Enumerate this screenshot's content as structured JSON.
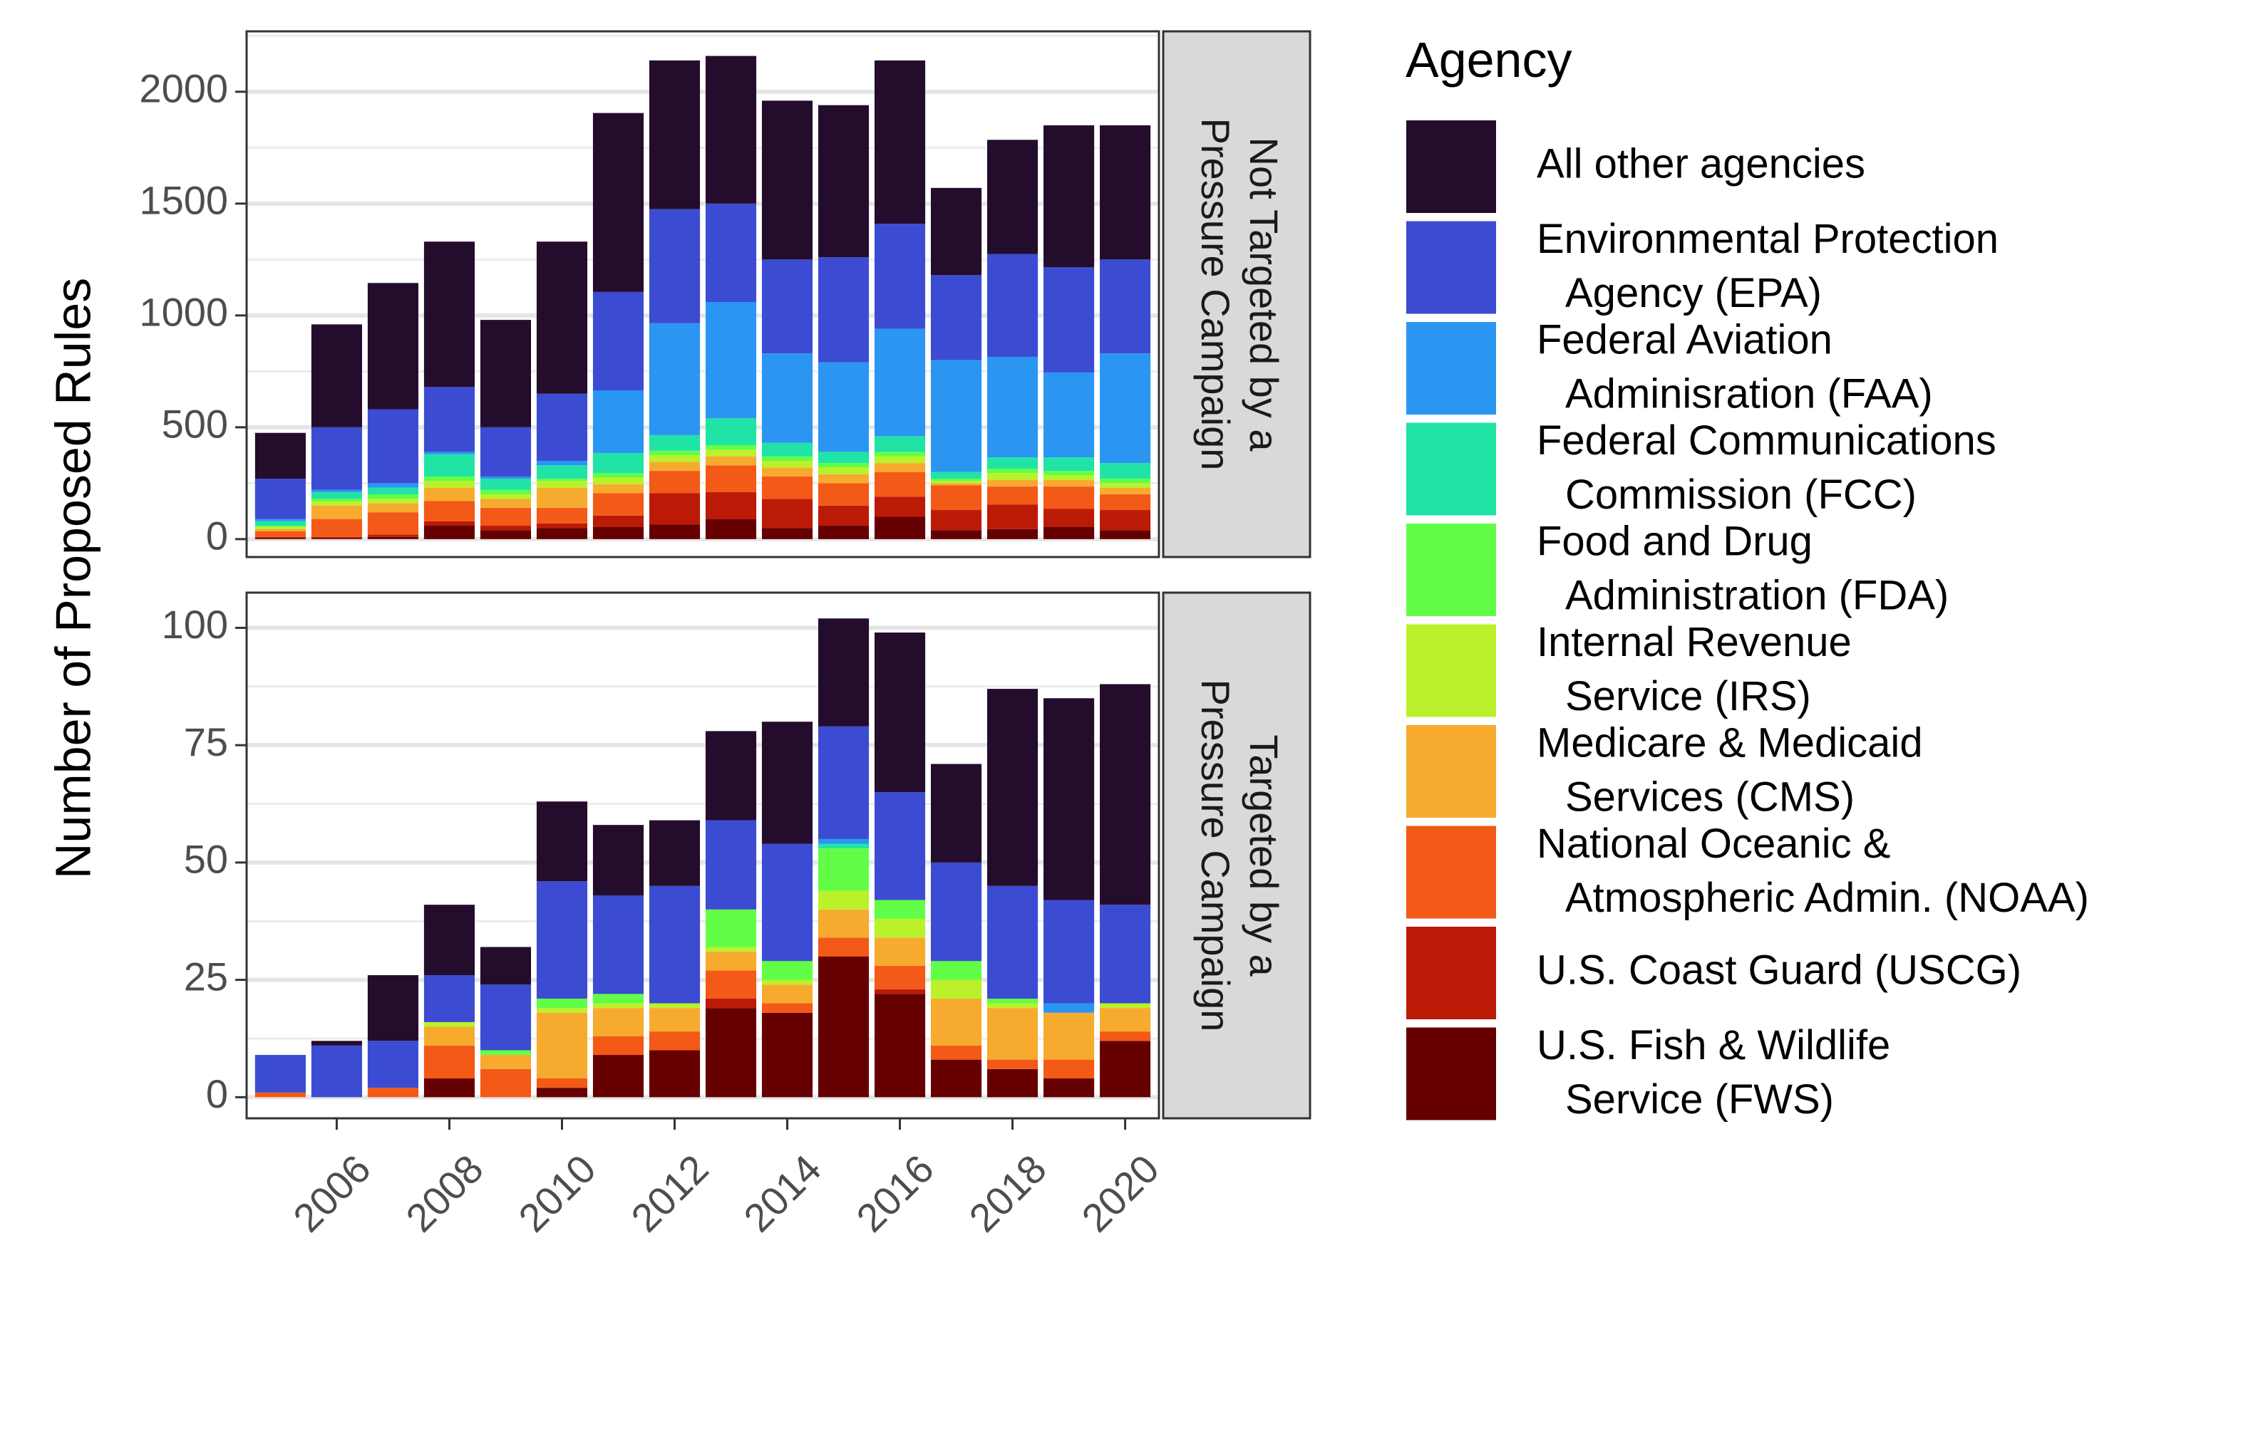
{
  "chart_data": {
    "type": "bar",
    "stacked": true,
    "ylabel": "Number of Proposed Rules",
    "xlabel": "",
    "x": [
      2005,
      2006,
      2007,
      2008,
      2009,
      2010,
      2011,
      2012,
      2013,
      2014,
      2015,
      2016,
      2017,
      2018,
      2019,
      2020
    ],
    "x_ticks": [
      2006,
      2008,
      2010,
      2012,
      2014,
      2016,
      2018,
      2020
    ],
    "grid": true,
    "legend": {
      "title": "Agency",
      "placement": "right",
      "items": [
        {
          "key": "other",
          "lines": [
            "All other agencies"
          ],
          "color": "#240c2c"
        },
        {
          "key": "epa",
          "lines": [
            "Environmental Protection",
            "Agency (EPA)"
          ],
          "color": "#3b4cd2"
        },
        {
          "key": "faa",
          "lines": [
            "Federal Aviation",
            "Adminisration (FAA)"
          ],
          "color": "#2a96f2"
        },
        {
          "key": "fcc",
          "lines": [
            "Federal Communications",
            "Commission (FCC)"
          ],
          "color": "#22e3a6"
        },
        {
          "key": "fda",
          "lines": [
            "Food and Drug",
            "Administration (FDA)"
          ],
          "color": "#62fe47"
        },
        {
          "key": "irs",
          "lines": [
            "Internal Revenue",
            "Service (IRS)"
          ],
          "color": "#bbf12a"
        },
        {
          "key": "cms",
          "lines": [
            "Medicare & Medicaid",
            "Services (CMS)"
          ],
          "color": "#f6ab2f"
        },
        {
          "key": "noaa",
          "lines": [
            "National Oceanic &",
            "Atmospheric Admin. (NOAA)"
          ],
          "color": "#f35917"
        },
        {
          "key": "uscg",
          "lines": [
            "U.S. Coast Guard (USCG)"
          ],
          "color": "#bb1a06"
        },
        {
          "key": "fws",
          "lines": [
            "U.S. Fish & Wildlife",
            "Service (FWS)"
          ],
          "color": "#660000"
        }
      ]
    },
    "panels": [
      {
        "strip": [
          "Not Targeted by a",
          "Pressure Campaign"
        ],
        "ylim": [
          -80,
          2270
        ],
        "y_ticks": [
          0,
          500,
          1000,
          1500,
          2000
        ],
        "stack_order": [
          "fws",
          "uscg",
          "noaa",
          "cms",
          "irs",
          "fda",
          "fcc",
          "faa",
          "epa",
          "other"
        ],
        "series": {
          "fws": [
            5,
            5,
            10,
            60,
            40,
            50,
            55,
            65,
            90,
            50,
            60,
            100,
            40,
            45,
            55,
            40
          ],
          "uscg": [
            5,
            5,
            10,
            20,
            20,
            20,
            50,
            140,
            120,
            130,
            90,
            90,
            90,
            110,
            80,
            90
          ],
          "noaa": [
            25,
            80,
            100,
            90,
            80,
            70,
            100,
            100,
            120,
            100,
            100,
            110,
            110,
            80,
            100,
            70
          ],
          "cms": [
            10,
            60,
            40,
            60,
            40,
            90,
            40,
            40,
            40,
            40,
            40,
            40,
            10,
            30,
            30,
            30
          ],
          "irs": [
            10,
            20,
            20,
            30,
            20,
            30,
            30,
            30,
            30,
            30,
            30,
            30,
            10,
            30,
            20,
            20
          ],
          "fda": [
            5,
            10,
            20,
            20,
            20,
            10,
            20,
            20,
            20,
            20,
            20,
            20,
            10,
            20,
            20,
            20
          ],
          "fcc": [
            20,
            30,
            30,
            100,
            50,
            60,
            90,
            70,
            120,
            60,
            50,
            70,
            30,
            50,
            60,
            70
          ],
          "faa": [
            10,
            10,
            20,
            10,
            10,
            20,
            280,
            500,
            520,
            400,
            400,
            480,
            500,
            450,
            380,
            490
          ],
          "epa": [
            180,
            280,
            330,
            290,
            220,
            300,
            440,
            510,
            440,
            420,
            470,
            470,
            380,
            460,
            470,
            420
          ],
          "other": [
            205,
            460,
            565,
            650,
            480,
            680,
            800,
            665,
            660,
            710,
            680,
            730,
            390,
            510,
            635,
            600
          ]
        }
      },
      {
        "strip": [
          "Targeted by a",
          "Pressure Campaign"
        ],
        "ylim": [
          -4.5,
          107.5
        ],
        "y_ticks": [
          0,
          25,
          50,
          75,
          100
        ],
        "stack_order": [
          "fws",
          "uscg",
          "noaa",
          "cms",
          "irs",
          "fda",
          "fcc",
          "faa",
          "epa",
          "other"
        ],
        "series": {
          "fws": [
            0,
            0,
            0,
            4,
            0,
            2,
            9,
            10,
            19,
            18,
            30,
            22,
            8,
            6,
            4,
            12
          ],
          "uscg": [
            0,
            0,
            0,
            0,
            0,
            0,
            0,
            0,
            2,
            0,
            0,
            1,
            0,
            0,
            0,
            0
          ],
          "noaa": [
            1,
            0,
            2,
            7,
            6,
            2,
            4,
            4,
            6,
            2,
            4,
            5,
            3,
            2,
            4,
            2
          ],
          "cms": [
            0,
            0,
            0,
            4,
            3,
            14,
            6,
            5,
            4,
            4,
            6,
            6,
            10,
            11,
            10,
            5
          ],
          "irs": [
            0,
            0,
            0,
            1,
            0,
            1,
            1,
            1,
            1,
            1,
            4,
            4,
            4,
            1,
            0,
            1
          ],
          "fda": [
            0,
            0,
            0,
            0,
            1,
            2,
            2,
            0,
            8,
            4,
            9,
            4,
            4,
            1,
            0,
            0
          ],
          "fcc": [
            0,
            0,
            0,
            0,
            0,
            0,
            0,
            0,
            0,
            0,
            1,
            0,
            0,
            0,
            0,
            0
          ],
          "faa": [
            0,
            0,
            0,
            0,
            0,
            0,
            0,
            0,
            0,
            0,
            1,
            0,
            0,
            0,
            2,
            0
          ],
          "epa": [
            8,
            11,
            10,
            10,
            14,
            25,
            21,
            25,
            19,
            25,
            24,
            23,
            21,
            24,
            22,
            21
          ],
          "other": [
            0,
            1,
            14,
            15,
            8,
            17,
            15,
            14,
            19,
            26,
            23,
            34,
            21,
            42,
            43,
            47
          ]
        }
      }
    ]
  }
}
